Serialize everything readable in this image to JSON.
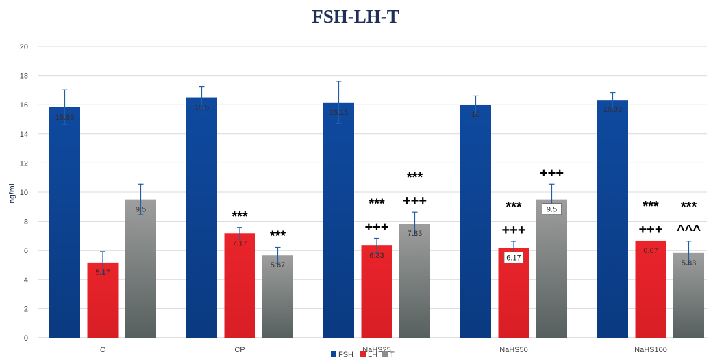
{
  "chart_data": {
    "type": "bar",
    "title": "FSH-LH-T",
    "xlabel": "",
    "ylabel": "ng/ml",
    "ylim": [
      0,
      20
    ],
    "yticks": [
      0,
      2,
      4,
      6,
      8,
      10,
      12,
      14,
      16,
      18,
      20
    ],
    "grid": true,
    "legend_position": "bottom",
    "categories": [
      "C",
      "CP",
      "NaHS25",
      "NaHS50",
      "NaHS100"
    ],
    "series": [
      {
        "name": "FSH",
        "color": "#0D4596",
        "values": [
          15.83,
          16.5,
          16.16,
          16,
          16.33
        ],
        "value_labels": [
          "15.83",
          "16.5",
          "16.16",
          "16",
          "16.33"
        ],
        "errors": [
          1.2,
          0.75,
          1.45,
          0.6,
          0.5
        ],
        "annotations": [
          [],
          [],
          [],
          [],
          []
        ]
      },
      {
        "name": "LH",
        "color": "#E5232A",
        "values": [
          5.17,
          7.17,
          6.33,
          6.17,
          6.67
        ],
        "value_labels": [
          "5.17",
          "7.17",
          "6.33",
          "6.17",
          "6.67"
        ],
        "errors": [
          0.75,
          0.4,
          0.5,
          0.45,
          0.0
        ],
        "annotations": [
          [],
          [
            "***"
          ],
          [
            "***",
            "+++"
          ],
          [
            "***",
            "+++"
          ],
          [
            "***",
            "+++"
          ]
        ]
      },
      {
        "name": "T",
        "color": "#8C8C8C",
        "values": [
          9.5,
          5.67,
          7.83,
          9.5,
          5.83
        ],
        "value_labels": [
          "9.5",
          "5.67",
          "7.83",
          "9.5",
          "5.83"
        ],
        "errors": [
          1.05,
          0.55,
          0.8,
          1.05,
          0.8
        ],
        "annotations": [
          [],
          [
            "***"
          ],
          [
            "***",
            "+++"
          ],
          [
            "+++"
          ],
          [
            "***",
            "^^^"
          ]
        ]
      }
    ]
  }
}
